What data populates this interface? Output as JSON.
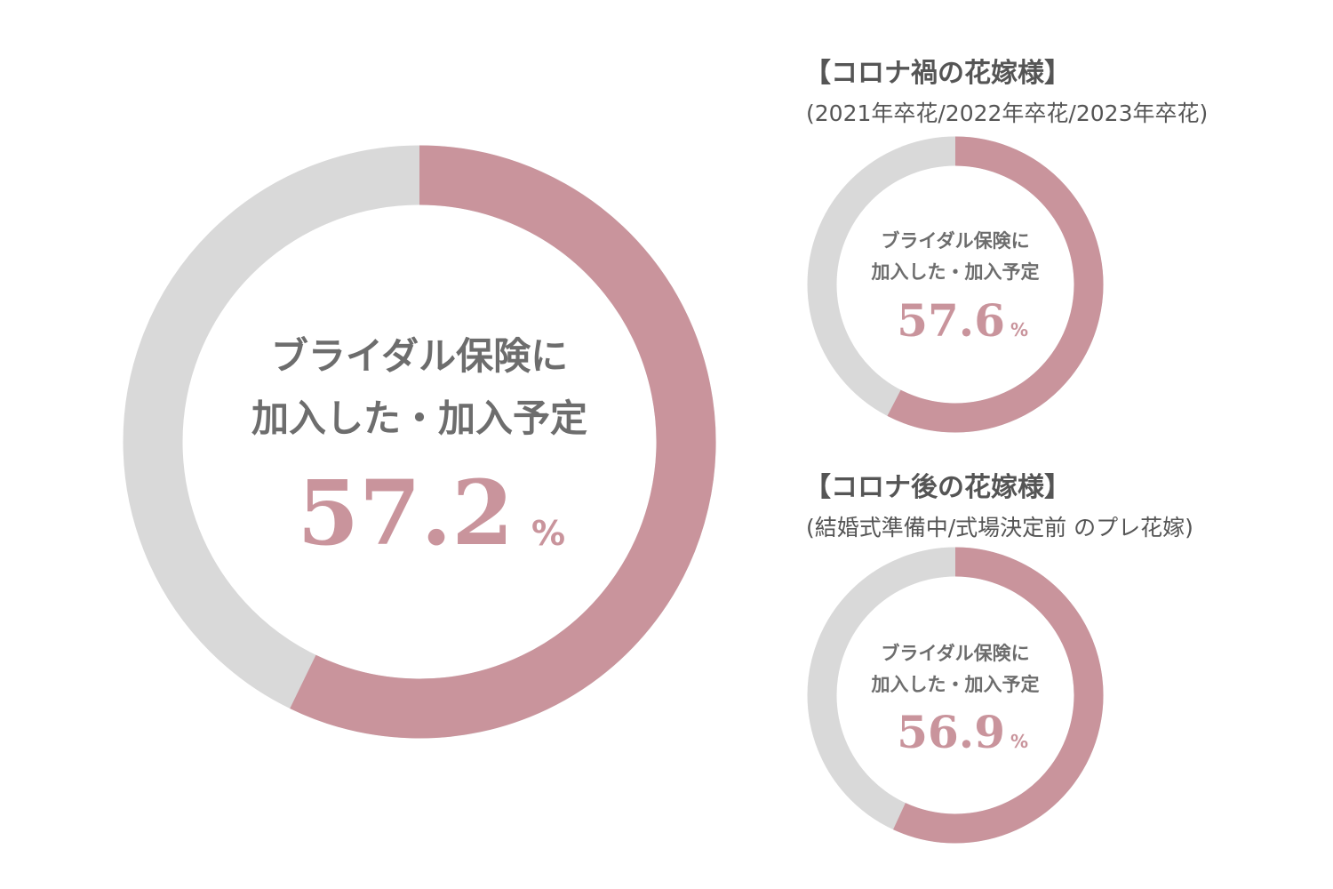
{
  "colors": {
    "accent": "#c9949c",
    "track": "#d9d9d9",
    "label": "#6d6d6d",
    "heading": "#555555"
  },
  "chart_data": [
    {
      "type": "pie",
      "label_line1": "ブライダル保険に",
      "label_line2": "加入した・加入予定",
      "value": 57.2,
      "value_text": "57.2",
      "unit": "%"
    },
    {
      "type": "pie",
      "heading": "【コロナ禍の花嫁様】",
      "subheading": "(2021年卒花/2022年卒花/2023年卒花)",
      "label_line1": "ブライダル保険に",
      "label_line2": "加入した・加入予定",
      "value": 57.6,
      "value_text": "57.6",
      "unit": "%"
    },
    {
      "type": "pie",
      "heading": "【コロナ後の花嫁様】",
      "subheading": "(結婚式準備中/式場決定前 のプレ花嫁)",
      "label_line1": "ブライダル保険に",
      "label_line2": "加入した・加入予定",
      "value": 56.9,
      "value_text": "56.9",
      "unit": "%"
    }
  ]
}
